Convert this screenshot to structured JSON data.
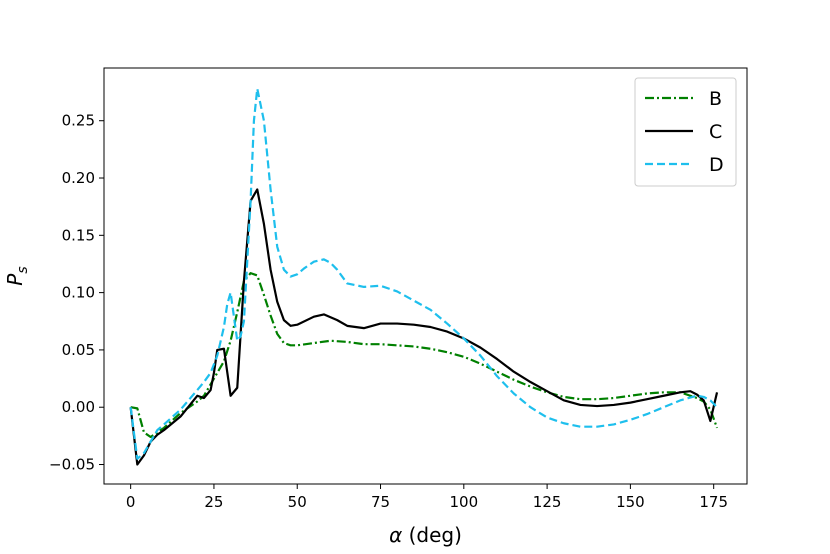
{
  "chart_data": {
    "type": "line",
    "xlabel": "α (deg)",
    "ylabel": "P",
    "ylabel_subscript": "s",
    "xlim": [
      -8,
      185
    ],
    "ylim": [
      -0.067,
      0.296
    ],
    "xticks": [
      0,
      25,
      50,
      75,
      100,
      125,
      150,
      175
    ],
    "yticks": [
      -0.05,
      0.0,
      0.05,
      0.1,
      0.15,
      0.2,
      0.25
    ],
    "ytick_labels": [
      "−0.05",
      "0.00",
      "0.05",
      "0.10",
      "0.15",
      "0.20",
      "0.25"
    ],
    "grid": false,
    "legend_position": "top-right",
    "series": [
      {
        "name": "B",
        "color": "#008000",
        "style": "dashdot",
        "x": [
          0,
          2,
          4,
          6,
          8,
          10,
          15,
          20,
          22,
          24,
          26,
          28,
          30,
          32,
          34,
          36,
          38,
          40,
          42,
          44,
          46,
          48,
          50,
          55,
          60,
          65,
          70,
          75,
          80,
          85,
          90,
          95,
          100,
          105,
          110,
          115,
          120,
          125,
          130,
          135,
          140,
          145,
          150,
          155,
          160,
          165,
          170,
          172,
          174,
          176
        ],
        "y": [
          0.0,
          -0.001,
          -0.022,
          -0.026,
          -0.022,
          -0.018,
          -0.005,
          0.005,
          0.01,
          0.02,
          0.03,
          0.04,
          0.058,
          0.083,
          0.11,
          0.117,
          0.115,
          0.098,
          0.08,
          0.064,
          0.056,
          0.054,
          0.054,
          0.056,
          0.058,
          0.057,
          0.055,
          0.055,
          0.054,
          0.053,
          0.051,
          0.048,
          0.044,
          0.038,
          0.031,
          0.024,
          0.018,
          0.013,
          0.009,
          0.007,
          0.007,
          0.008,
          0.01,
          0.012,
          0.013,
          0.013,
          0.008,
          0.005,
          -0.002,
          -0.018
        ]
      },
      {
        "name": "C",
        "color": "#000000",
        "style": "solid",
        "x": [
          0,
          2,
          4,
          6,
          8,
          10,
          15,
          20,
          22,
          24,
          25,
          26,
          28,
          30,
          32,
          34,
          36,
          38,
          40,
          42,
          44,
          46,
          48,
          50,
          55,
          58,
          62,
          65,
          70,
          75,
          80,
          85,
          90,
          95,
          100,
          105,
          110,
          115,
          120,
          125,
          130,
          135,
          140,
          145,
          150,
          155,
          160,
          165,
          168,
          170,
          172,
          174,
          176
        ],
        "y": [
          0.0,
          -0.05,
          -0.042,
          -0.03,
          -0.024,
          -0.02,
          -0.008,
          0.01,
          0.008,
          0.015,
          0.03,
          0.05,
          0.051,
          0.01,
          0.017,
          0.11,
          0.18,
          0.19,
          0.16,
          0.12,
          0.092,
          0.076,
          0.071,
          0.072,
          0.079,
          0.081,
          0.076,
          0.071,
          0.069,
          0.073,
          0.073,
          0.072,
          0.07,
          0.066,
          0.06,
          0.052,
          0.042,
          0.031,
          0.022,
          0.014,
          0.006,
          0.002,
          0.001,
          0.002,
          0.004,
          0.007,
          0.01,
          0.013,
          0.014,
          0.011,
          0.006,
          -0.012,
          0.013
        ]
      },
      {
        "name": "D",
        "color": "#1ebfed",
        "style": "dashed",
        "x": [
          0,
          2,
          4,
          6,
          8,
          10,
          15,
          20,
          22,
          24,
          26,
          28,
          29,
          30,
          32,
          33,
          34,
          36,
          37,
          38,
          40,
          42,
          44,
          46,
          48,
          50,
          52,
          55,
          58,
          60,
          62,
          65,
          70,
          75,
          80,
          85,
          90,
          95,
          100,
          105,
          110,
          115,
          120,
          125,
          130,
          135,
          140,
          145,
          150,
          155,
          160,
          165,
          170,
          172,
          174,
          176
        ],
        "y": [
          0.0,
          -0.045,
          -0.04,
          -0.03,
          -0.02,
          -0.015,
          -0.002,
          0.015,
          0.022,
          0.03,
          0.045,
          0.07,
          0.09,
          0.1,
          0.058,
          0.062,
          0.075,
          0.18,
          0.25,
          0.278,
          0.25,
          0.19,
          0.14,
          0.12,
          0.114,
          0.116,
          0.121,
          0.127,
          0.129,
          0.126,
          0.12,
          0.108,
          0.105,
          0.106,
          0.101,
          0.093,
          0.085,
          0.073,
          0.06,
          0.045,
          0.027,
          0.012,
          0.0,
          -0.009,
          -0.014,
          -0.017,
          -0.017,
          -0.015,
          -0.011,
          -0.006,
          0.0,
          0.006,
          0.01,
          0.009,
          0.006,
          0.0
        ]
      }
    ]
  }
}
